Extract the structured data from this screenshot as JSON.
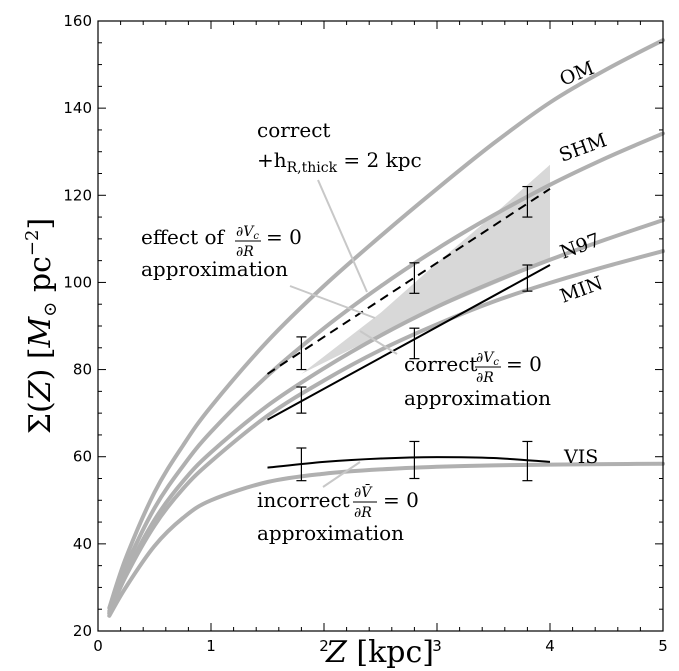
{
  "chart_data": {
    "type": "line",
    "xlabel": "Z [kpc]",
    "ylabel": "Σ(Z) [M⊙ pc⁻²]",
    "xlim": [
      0,
      5
    ],
    "ylim": [
      20,
      160
    ],
    "xticks": [
      0,
      1,
      2,
      3,
      4,
      5
    ],
    "yticks": [
      20,
      40,
      60,
      80,
      100,
      120,
      140,
      160
    ],
    "grid": false,
    "model_curves": [
      {
        "name": "OM",
        "color": "#b0b0b0",
        "x": [
          0.1,
          0.25,
          0.5,
          0.75,
          1,
          1.5,
          2,
          2.5,
          3,
          3.5,
          4,
          4.5,
          5
        ],
        "y": [
          25.3,
          37,
          51.8,
          62.5,
          71.5,
          86.5,
          99.2,
          110.6,
          121.5,
          131.9,
          141.3,
          148.9,
          155.6
        ]
      },
      {
        "name": "SHM",
        "color": "#b0b0b0",
        "x": [
          0.1,
          0.25,
          0.5,
          0.75,
          1,
          1.5,
          2,
          2.5,
          3,
          3.5,
          4,
          4.5,
          5
        ],
        "y": [
          24.6,
          35,
          48.2,
          57.8,
          65.7,
          78.6,
          89.5,
          99.1,
          107.7,
          115.4,
          122.4,
          128.6,
          134.2
        ]
      },
      {
        "name": "N97",
        "color": "#b0b0b0",
        "x": [
          0.1,
          0.25,
          0.5,
          0.75,
          1,
          1.5,
          2,
          2.5,
          3,
          3.5,
          4,
          4.5,
          5
        ],
        "y": [
          24.2,
          33.5,
          45.5,
          54.3,
          61,
          71.7,
          80.3,
          87.8,
          94.4,
          100.1,
          105.2,
          109.9,
          114.3
        ]
      },
      {
        "name": "MIN",
        "color": "#b0b0b0",
        "x": [
          0.1,
          0.25,
          0.5,
          0.75,
          1,
          1.5,
          2,
          2.5,
          3,
          3.5,
          4,
          4.5,
          5
        ],
        "y": [
          24,
          32.8,
          44.2,
          52.6,
          58.9,
          69.4,
          77.5,
          84.5,
          90.4,
          95.6,
          99.9,
          103.7,
          107.2
        ]
      },
      {
        "name": "VIS",
        "color": "#b0b0b0",
        "x": [
          0.1,
          0.25,
          0.5,
          0.75,
          1,
          1.5,
          2,
          2.5,
          3,
          3.5,
          4,
          4.5,
          5
        ],
        "y": [
          23.5,
          30.2,
          39.5,
          45.9,
          50,
          54.2,
          56.1,
          57.1,
          57.7,
          58,
          58.2,
          58.3,
          58.4
        ]
      }
    ],
    "shaded_region": {
      "color": "#d8d8d8",
      "upper": {
        "x": [
          1.8,
          2.5,
          3,
          3.5,
          4
        ],
        "y": [
          79,
          93,
          104.5,
          115.5,
          127
        ]
      },
      "lower": {
        "x": [
          1.8,
          2.5,
          3,
          3.5,
          4
        ],
        "y": [
          79,
          88,
          94,
          99.5,
          105
        ]
      }
    },
    "measured_curves": [
      {
        "style": "dashed",
        "color": "#000000",
        "x": [
          1.5,
          4
        ],
        "y": [
          79,
          121.5
        ]
      },
      {
        "style": "solid",
        "color": "#000000",
        "x": [
          1.5,
          4
        ],
        "y": [
          68.5,
          104
        ]
      },
      {
        "style": "solid",
        "color": "#000000",
        "x": [
          1.5,
          2,
          2.5,
          3,
          3.5,
          4
        ],
        "y": [
          57.5,
          58.8,
          59.6,
          59.9,
          59.7,
          58.8
        ]
      }
    ],
    "error_bars": [
      {
        "x": 1.8,
        "y": 83.5,
        "low": 80,
        "high": 87.5
      },
      {
        "x": 2.8,
        "y": 101.2,
        "low": 97.5,
        "high": 104.5
      },
      {
        "x": 3.8,
        "y": 118.4,
        "low": 115,
        "high": 122
      },
      {
        "x": 1.8,
        "y": 72.5,
        "low": 70,
        "high": 76
      },
      {
        "x": 2.8,
        "y": 86,
        "low": 82.5,
        "high": 89.5
      },
      {
        "x": 3.8,
        "y": 101.5,
        "low": 98,
        "high": 104
      },
      {
        "x": 1.8,
        "y": 58,
        "low": 54.5,
        "high": 62
      },
      {
        "x": 2.8,
        "y": 59,
        "low": 55,
        "high": 63.5
      },
      {
        "x": 3.8,
        "y": 59,
        "low": 54.5,
        "high": 63.5
      }
    ],
    "annotations": {
      "correct_thick": {
        "line1": "correct",
        "line2": "+h",
        "sub": "R,thick",
        "tail": " = 2 kpc"
      },
      "effect_of": {
        "line1": "effect of",
        "frac_num": "∂V",
        "frac_num_sub": "c",
        "frac_den": "∂R",
        "eq": "= 0",
        "line2": "approximation"
      },
      "correct_dvc": {
        "line1": "correct",
        "frac_num": "∂V",
        "frac_num_sub": "c",
        "frac_den": "∂R",
        "eq": "= 0",
        "line2": "approximation"
      },
      "incorrect": {
        "line1": "incorrect",
        "frac_num": "∂V̄",
        "frac_den": "∂R",
        "eq": "= 0",
        "line2": "approximation"
      }
    }
  }
}
